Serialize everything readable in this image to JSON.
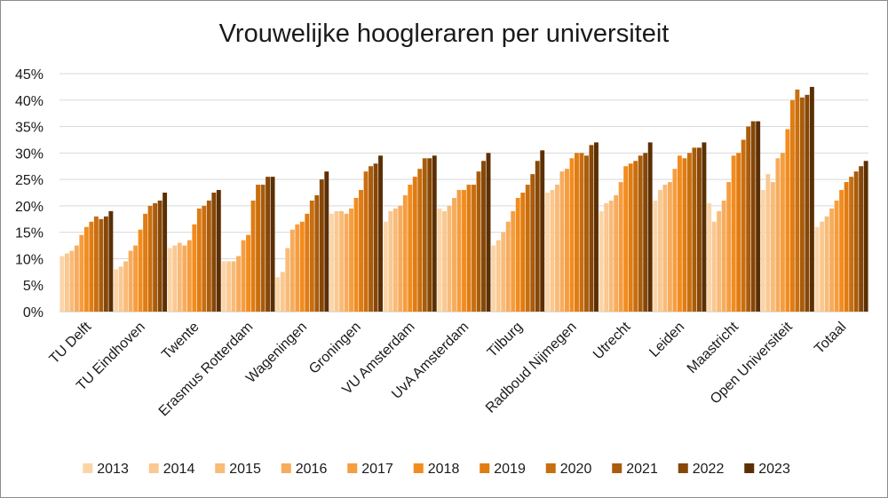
{
  "chart_data": {
    "type": "bar",
    "title": "Vrouwelijke hoogleraren per universiteit",
    "xlabel": "",
    "ylabel": "",
    "ylim": [
      0,
      45
    ],
    "yticks": [
      "0%",
      "5%",
      "10%",
      "15%",
      "20%",
      "25%",
      "30%",
      "35%",
      "40%",
      "45%"
    ],
    "grid": true,
    "legend_position": "bottom",
    "categories": [
      "TU Delft",
      "TU Eindhoven",
      "Twente",
      "Erasmus Rotterdam",
      "Wageningen",
      "Groningen",
      "VU Amsterdam",
      "UvA Amsterdam",
      "Tilburg",
      "Radboud Nijmegen",
      "Utrecht",
      "Leiden",
      "Maastricht",
      "Open Universiteit",
      "Totaal"
    ],
    "series": [
      {
        "name": "2013",
        "color": "#fbd5a8",
        "values": [
          10.5,
          8.0,
          12.0,
          9.5,
          6.5,
          18.5,
          17.0,
          19.5,
          12.5,
          22.5,
          19.0,
          21.0,
          20.5,
          23.0,
          16.0
        ]
      },
      {
        "name": "2014",
        "color": "#fac891",
        "values": [
          11.0,
          8.5,
          12.5,
          9.5,
          7.5,
          19.0,
          19.0,
          19.0,
          13.5,
          23.0,
          20.5,
          23.0,
          17.0,
          26.0,
          17.0
        ]
      },
      {
        "name": "2015",
        "color": "#f9bb78",
        "values": [
          11.5,
          9.5,
          13.0,
          9.5,
          12.0,
          19.0,
          19.5,
          20.0,
          15.0,
          24.0,
          21.0,
          24.0,
          19.0,
          24.5,
          18.0
        ]
      },
      {
        "name": "2016",
        "color": "#f7ac5d",
        "values": [
          12.5,
          11.5,
          12.5,
          10.5,
          15.5,
          18.5,
          20.0,
          21.5,
          17.0,
          26.5,
          22.0,
          24.5,
          21.0,
          29.0,
          19.5
        ]
      },
      {
        "name": "2017",
        "color": "#f69d3f",
        "values": [
          14.5,
          12.5,
          13.5,
          13.5,
          16.5,
          19.5,
          22.0,
          23.0,
          19.0,
          27.0,
          24.5,
          27.0,
          24.5,
          30.0,
          21.0
        ]
      },
      {
        "name": "2018",
        "color": "#f28c1e",
        "values": [
          16.0,
          15.5,
          16.5,
          14.5,
          17.0,
          21.5,
          24.0,
          23.0,
          21.5,
          29.0,
          27.5,
          29.5,
          29.5,
          34.5,
          23.0
        ]
      },
      {
        "name": "2019",
        "color": "#e07c12",
        "values": [
          17.0,
          18.5,
          19.5,
          21.0,
          18.5,
          23.0,
          25.5,
          24.0,
          22.5,
          30.0,
          28.0,
          29.0,
          30.0,
          40.0,
          24.5
        ]
      },
      {
        "name": "2020",
        "color": "#c96e0f",
        "values": [
          18.0,
          20.0,
          20.0,
          24.0,
          21.0,
          26.5,
          27.0,
          24.0,
          24.0,
          30.0,
          28.5,
          30.0,
          32.5,
          42.0,
          25.5
        ]
      },
      {
        "name": "2021",
        "color": "#a95c0b",
        "values": [
          17.5,
          20.5,
          21.0,
          24.0,
          22.0,
          27.5,
          29.0,
          26.5,
          26.0,
          29.5,
          29.5,
          31.0,
          35.0,
          40.5,
          26.5
        ]
      },
      {
        "name": "2022",
        "color": "#864707",
        "values": [
          18.0,
          21.0,
          22.5,
          25.5,
          25.0,
          28.0,
          29.0,
          28.5,
          28.5,
          31.5,
          30.0,
          31.0,
          36.0,
          41.0,
          27.5
        ]
      },
      {
        "name": "2023",
        "color": "#5c2f03",
        "values": [
          19.0,
          22.5,
          23.0,
          25.5,
          26.5,
          29.5,
          29.5,
          30.0,
          30.5,
          32.0,
          32.0,
          32.0,
          36.0,
          42.5,
          28.5
        ]
      }
    ]
  }
}
